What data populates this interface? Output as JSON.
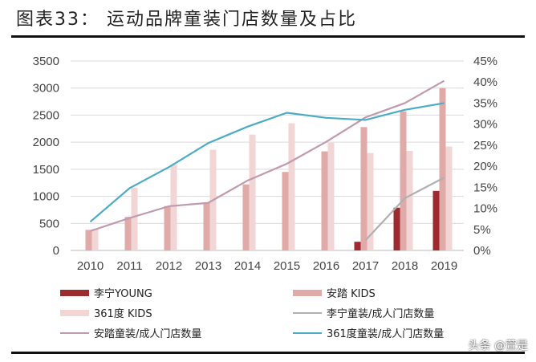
{
  "title": "图表33： 运动品牌童装门店数量及占比",
  "watermark": "头条 @萱是",
  "chart_data": {
    "type": "bar+line",
    "categories": [
      "2010",
      "2011",
      "2012",
      "2013",
      "2014",
      "2015",
      "2016",
      "2017",
      "2018",
      "2019"
    ],
    "y_left": {
      "range": [
        0,
        3500
      ],
      "ticks": [
        "0",
        "500",
        "1000",
        "1500",
        "2000",
        "2500",
        "3000",
        "3500"
      ]
    },
    "y_right": {
      "range": [
        0,
        45
      ],
      "ticks": [
        "0%",
        "5%",
        "10%",
        "15%",
        "20%",
        "25%",
        "30%",
        "35%",
        "40%",
        "45%"
      ]
    },
    "grid": true,
    "legend_position": "bottom",
    "bars": [
      {
        "name": "李宁YOUNG",
        "color": "#9b2b2f",
        "values": [
          null,
          null,
          null,
          null,
          null,
          null,
          null,
          160,
          790,
          1100
        ]
      },
      {
        "name": "安踏 KIDS",
        "color": "#e0aaa9",
        "values": [
          380,
          620,
          820,
          880,
          1220,
          1450,
          1830,
          2280,
          2570,
          3000
        ]
      },
      {
        "name": "361度 KIDS",
        "color": "#f1d6d5",
        "values": [
          400,
          1160,
          1590,
          1860,
          2140,
          2350,
          1990,
          1800,
          1840,
          1920
        ]
      }
    ],
    "lines": [
      {
        "name": "李宁童装/成人门店数量",
        "color": "#b0b0b0",
        "values": [
          null,
          null,
          null,
          null,
          null,
          null,
          null,
          2.4,
          12.4,
          17.3
        ]
      },
      {
        "name": "安踏童装/成人门店数量",
        "color": "#c09aae",
        "values": [
          4.6,
          7.7,
          10.5,
          11.3,
          16.6,
          20.6,
          25.8,
          31.6,
          35.0,
          40.3
        ]
      },
      {
        "name": "361度童装/成人门店数量",
        "color": "#4bacc6",
        "values": [
          6.8,
          14.8,
          19.8,
          25.5,
          29.4,
          32.7,
          31.5,
          31.0,
          33.4,
          35.0
        ]
      }
    ]
  }
}
